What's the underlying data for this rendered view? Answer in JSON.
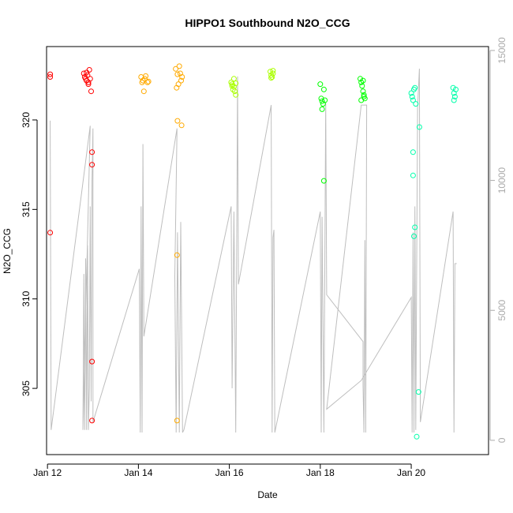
{
  "chart_data": {
    "type": "scatter",
    "title": "HIPPO1 Southbound N2O_CCG",
    "xlabel": "Date",
    "ylabel": "N2O_CCG",
    "xlim": [
      11.98,
      21.7
    ],
    "ylim": [
      301.3,
      324.1
    ],
    "y2lim": [
      -550,
      15150
    ],
    "x_ticks": [
      {
        "x": 12,
        "label": "Jan 12"
      },
      {
        "x": 14,
        "label": "Jan 14"
      },
      {
        "x": 16,
        "label": "Jan 16"
      },
      {
        "x": 18,
        "label": "Jan 18"
      },
      {
        "x": 20,
        "label": "Jan 20"
      }
    ],
    "y_ticks": [
      305,
      310,
      315,
      320
    ],
    "y2_ticks": [
      0,
      5000,
      10000,
      15000
    ],
    "colors": {
      "red": "#ff0000",
      "orange": "#ffaa00",
      "yellowgreen": "#aaff00",
      "green": "#00ff00",
      "cyan": "#00ffaa",
      "altitude_line": "#bebebe"
    },
    "series": [
      {
        "color": "#ff0000",
        "points": [
          [
            12.06,
            322.4
          ],
          [
            12.06,
            322.55
          ],
          [
            12.06,
            313.7
          ],
          [
            12.8,
            322.6
          ],
          [
            12.82,
            322.4
          ],
          [
            12.84,
            322.3
          ],
          [
            12.86,
            322.2
          ],
          [
            12.88,
            322.5
          ],
          [
            12.9,
            322.1
          ],
          [
            12.92,
            322.8
          ],
          [
            12.94,
            322.3
          ],
          [
            12.96,
            321.6
          ],
          [
            12.9,
            322.0
          ],
          [
            12.86,
            322.65
          ],
          [
            12.98,
            318.2
          ],
          [
            12.98,
            317.5
          ],
          [
            12.98,
            306.5
          ],
          [
            12.98,
            303.2
          ]
        ]
      },
      {
        "color": "#ffaa00",
        "points": [
          [
            14.06,
            322.4
          ],
          [
            14.08,
            322.1
          ],
          [
            14.1,
            322.2
          ],
          [
            14.12,
            321.6
          ],
          [
            14.14,
            322.3
          ],
          [
            14.16,
            322.45
          ],
          [
            14.2,
            322.1
          ],
          [
            14.22,
            322.15
          ],
          [
            14.82,
            322.85
          ],
          [
            14.86,
            322.55
          ],
          [
            14.9,
            323.0
          ],
          [
            14.92,
            322.6
          ],
          [
            14.94,
            322.2
          ],
          [
            14.96,
            322.4
          ],
          [
            14.88,
            322.0
          ],
          [
            14.84,
            321.8
          ],
          [
            14.86,
            319.95
          ],
          [
            14.95,
            319.7
          ],
          [
            14.85,
            312.45
          ],
          [
            14.85,
            303.2
          ]
        ]
      },
      {
        "color": "#aaff00",
        "points": [
          [
            16.04,
            322.1
          ],
          [
            16.06,
            321.9
          ],
          [
            16.08,
            321.7
          ],
          [
            16.1,
            322.3
          ],
          [
            16.12,
            321.6
          ],
          [
            16.14,
            321.4
          ],
          [
            16.06,
            322.0
          ],
          [
            16.1,
            321.85
          ],
          [
            16.14,
            322.05
          ],
          [
            16.9,
            322.7
          ],
          [
            16.92,
            322.5
          ],
          [
            16.94,
            322.4
          ],
          [
            16.96,
            322.6
          ],
          [
            16.92,
            322.35
          ],
          [
            16.96,
            322.75
          ]
        ]
      },
      {
        "color": "#00ff00",
        "points": [
          [
            18.0,
            322.0
          ],
          [
            18.02,
            321.2
          ],
          [
            18.04,
            321.05
          ],
          [
            18.06,
            320.9
          ],
          [
            18.08,
            321.7
          ],
          [
            18.1,
            321.1
          ],
          [
            18.04,
            320.6
          ],
          [
            18.08,
            316.6
          ],
          [
            18.88,
            322.3
          ],
          [
            18.9,
            322.1
          ],
          [
            18.92,
            321.9
          ],
          [
            18.94,
            321.6
          ],
          [
            18.96,
            321.3
          ],
          [
            18.98,
            321.2
          ],
          [
            18.9,
            321.1
          ],
          [
            18.94,
            322.2
          ],
          [
            18.96,
            321.4
          ]
        ]
      },
      {
        "color": "#00ffaa",
        "points": [
          [
            20.0,
            321.5
          ],
          [
            20.02,
            321.3
          ],
          [
            20.04,
            321.1
          ],
          [
            20.06,
            321.7
          ],
          [
            20.08,
            321.8
          ],
          [
            20.04,
            318.2
          ],
          [
            20.04,
            316.9
          ],
          [
            20.1,
            320.9
          ],
          [
            20.06,
            313.5
          ],
          [
            20.08,
            314.0
          ],
          [
            20.18,
            319.6
          ],
          [
            20.16,
            304.8
          ],
          [
            20.12,
            302.3
          ],
          [
            20.92,
            321.8
          ],
          [
            20.94,
            321.5
          ],
          [
            20.96,
            321.3
          ],
          [
            20.98,
            321.7
          ],
          [
            20.94,
            321.1
          ]
        ]
      }
    ],
    "altitude_line": [
      [
        12.06,
        12300
      ],
      [
        12.08,
        400
      ],
      [
        12.94,
        12100
      ],
      [
        12.78,
        400
      ],
      [
        12.8,
        6400
      ],
      [
        12.82,
        400
      ],
      [
        12.84,
        7000
      ],
      [
        12.86,
        400
      ],
      [
        12.88,
        7500
      ],
      [
        12.9,
        400
      ],
      [
        12.92,
        2000
      ],
      [
        12.94,
        9000
      ],
      [
        12.96,
        1500
      ],
      [
        12.98,
        10000
      ],
      [
        13.0,
        12000
      ],
      [
        13.0,
        700
      ],
      [
        14.02,
        6600
      ],
      [
        14.04,
        300
      ],
      [
        14.06,
        9000
      ],
      [
        14.08,
        300
      ],
      [
        14.1,
        11400
      ],
      [
        14.12,
        4000
      ],
      [
        14.85,
        12000
      ],
      [
        14.8,
        6300
      ],
      [
        14.83,
        300
      ],
      [
        14.86,
        8000
      ],
      [
        14.9,
        300
      ],
      [
        14.93,
        8400
      ],
      [
        14.97,
        300
      ],
      [
        15.0,
        400
      ],
      [
        16.04,
        9000
      ],
      [
        16.06,
        2000
      ],
      [
        16.1,
        8800
      ],
      [
        16.14,
        300
      ],
      [
        16.18,
        14000
      ],
      [
        16.2,
        6000
      ],
      [
        16.92,
        12900
      ],
      [
        16.94,
        300
      ],
      [
        16.96,
        7800
      ],
      [
        16.98,
        8100
      ],
      [
        17.0,
        300
      ],
      [
        17.0,
        300
      ],
      [
        18.0,
        8800
      ],
      [
        18.02,
        300
      ],
      [
        18.04,
        8600
      ],
      [
        18.08,
        300
      ],
      [
        18.12,
        13000
      ],
      [
        18.14,
        5600
      ],
      [
        18.94,
        3800
      ],
      [
        18.94,
        2100
      ],
      [
        18.96,
        300
      ],
      [
        18.98,
        7700
      ],
      [
        19.0,
        300
      ],
      [
        19.02,
        12900
      ],
      [
        18.9,
        12900
      ],
      [
        18.14,
        1200
      ],
      [
        18.9,
        2300
      ],
      [
        20.0,
        5500
      ],
      [
        20.02,
        300
      ],
      [
        20.04,
        8000
      ],
      [
        20.06,
        300
      ],
      [
        20.08,
        9000
      ],
      [
        20.1,
        400
      ],
      [
        20.14,
        12800
      ],
      [
        20.18,
        14300
      ],
      [
        20.2,
        700
      ],
      [
        20.92,
        8800
      ],
      [
        20.94,
        300
      ],
      [
        20.96,
        6800
      ],
      [
        21.0,
        6800
      ]
    ]
  }
}
